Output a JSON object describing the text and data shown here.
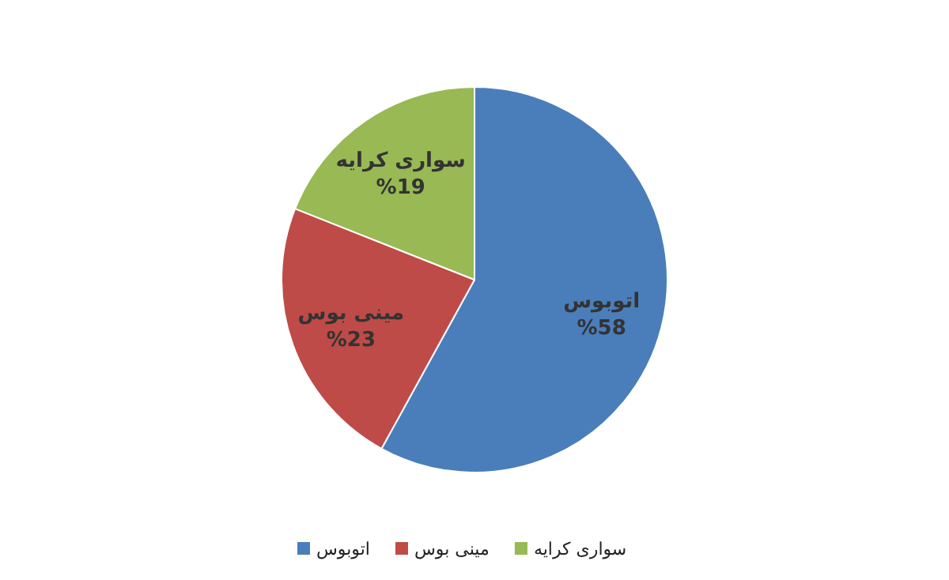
{
  "chart_data": {
    "type": "pie",
    "categories": [
      "اتوبوس",
      "مینی بوس",
      "سواری کرایه"
    ],
    "values": [
      58,
      23,
      19
    ],
    "value_labels": [
      "%58",
      "%23",
      "%19"
    ],
    "colors": [
      "#4a7ebb",
      "#be4b48",
      "#98b954"
    ],
    "legend": "bottom"
  }
}
